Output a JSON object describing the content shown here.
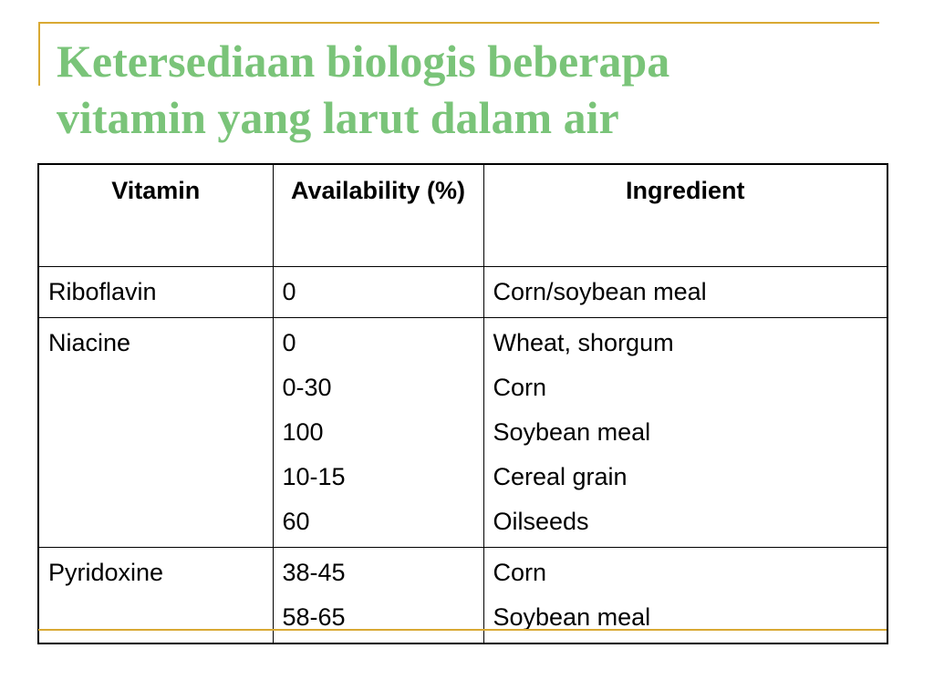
{
  "slide": {
    "title_line1": "Ketersediaan biologis beberapa",
    "title_line2": "vitamin yang larut dalam air",
    "title_color": "#7ac479",
    "accent_color": "#d9a933"
  },
  "table": {
    "headers": [
      "Vitamin",
      "Availability (%)",
      "Ingredient"
    ],
    "rows": [
      {
        "vitamin": "Riboflavin",
        "availability": [
          "0"
        ],
        "ingredient": [
          "Corn/soybean meal"
        ]
      },
      {
        "vitamin": "Niacine",
        "availability": [
          "0",
          "0-30",
          "100",
          "10-15",
          "60"
        ],
        "ingredient": [
          "Wheat, shorgum",
          "Corn",
          "Soybean meal",
          "Cereal grain",
          "Oilseeds"
        ]
      },
      {
        "vitamin": "Pyridoxine",
        "availability": [
          "38-45",
          "58-65"
        ],
        "ingredient": [
          "Corn",
          "Soybean meal"
        ]
      }
    ]
  }
}
